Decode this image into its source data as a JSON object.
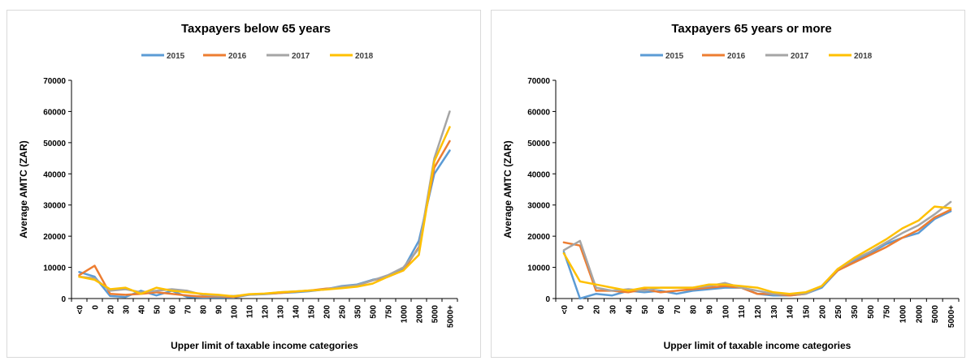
{
  "colors": {
    "2015": "#5b9bd5",
    "2016": "#ed7d31",
    "2017": "#a5a5a5",
    "2018": "#ffc000"
  },
  "chart_data": [
    {
      "type": "line",
      "title": "Taxpayers below 65 years",
      "xlabel": "Upper limit of taxable income categories",
      "ylabel": "Average AMTC (ZAR)",
      "ylim": [
        0,
        70000
      ],
      "yticks": [
        "0",
        "10000",
        "20000",
        "30000",
        "40000",
        "50000",
        "60000",
        "70000"
      ],
      "legend_position": "top",
      "grid": false,
      "categories": [
        "<0",
        "0",
        "20",
        "30",
        "40",
        "50",
        "60",
        "70",
        "80",
        "90",
        "100",
        "110",
        "120",
        "130",
        "140",
        "150",
        "200",
        "250",
        "350",
        "500",
        "750",
        "1000",
        "2000",
        "5000",
        "5000+"
      ],
      "series": [
        {
          "name": "2015",
          "values": [
            8500,
            7000,
            800,
            500,
            2500,
            1000,
            2500,
            500,
            300,
            400,
            300,
            1200,
            1400,
            1800,
            2000,
            2400,
            3000,
            4000,
            4500,
            6000,
            7000,
            9500,
            18500,
            40000,
            47500
          ]
        },
        {
          "name": "2016",
          "values": [
            7500,
            10500,
            1500,
            1200,
            1500,
            2000,
            1500,
            1000,
            600,
            700,
            500,
            1300,
            1500,
            1800,
            2200,
            2600,
            3200,
            3500,
            4200,
            5800,
            7000,
            9000,
            16500,
            42000,
            50500
          ]
        },
        {
          "name": "2017",
          "values": [
            7000,
            6500,
            2500,
            3000,
            2000,
            2500,
            3000,
            2500,
            1200,
            900,
            800,
            1200,
            1500,
            2000,
            2300,
            2500,
            3000,
            3800,
            4300,
            5800,
            7500,
            10000,
            16000,
            45000,
            60000
          ]
        },
        {
          "name": "2018",
          "values": [
            7000,
            6000,
            3000,
            3500,
            1500,
            3500,
            2500,
            2000,
            1500,
            1200,
            700,
            1400,
            1600,
            2000,
            2300,
            2600,
            2900,
            3300,
            3800,
            4800,
            7000,
            9000,
            14000,
            44000,
            55000
          ]
        }
      ]
    },
    {
      "type": "line",
      "title": "Taxpayers 65 years or more",
      "xlabel": "Upper limit of taxable income categories",
      "ylabel": "Average AMTC (ZAR)",
      "ylim": [
        0,
        70000
      ],
      "yticks": [
        "0",
        "10000",
        "20000",
        "30000",
        "40000",
        "50000",
        "60000",
        "70000"
      ],
      "legend_position": "top",
      "grid": false,
      "categories": [
        "<0",
        "0",
        "20",
        "30",
        "40",
        "50",
        "60",
        "70",
        "80",
        "90",
        "100",
        "110",
        "120",
        "130",
        "140",
        "150",
        "200",
        "250",
        "350",
        "500",
        "750",
        "1000",
        "2000",
        "5000",
        "5000+"
      ],
      "series": [
        {
          "name": "2015",
          "values": [
            15000,
            0,
            1500,
            1000,
            2500,
            2000,
            2500,
            1500,
            2500,
            3000,
            3500,
            3500,
            1500,
            1000,
            1000,
            1500,
            3500,
            9000,
            12000,
            14500,
            17500,
            19500,
            21000,
            25500,
            28000
          ]
        },
        {
          "name": "2016",
          "values": [
            18000,
            17000,
            2500,
            2500,
            2000,
            3000,
            2000,
            2500,
            3000,
            3500,
            4000,
            3500,
            1500,
            1500,
            1000,
            1500,
            4000,
            9000,
            11500,
            14000,
            16500,
            19500,
            22000,
            26000,
            28500
          ]
        },
        {
          "name": "2017",
          "values": [
            15500,
            18500,
            3500,
            2500,
            3000,
            2500,
            3500,
            3500,
            3500,
            4000,
            5000,
            3500,
            2500,
            1500,
            1500,
            1500,
            4000,
            9500,
            12500,
            15000,
            18000,
            21000,
            23500,
            27000,
            31000
          ]
        },
        {
          "name": "2018",
          "values": [
            14500,
            5500,
            4500,
            3500,
            2500,
            3500,
            3500,
            3500,
            3500,
            4500,
            4500,
            4000,
            3500,
            2000,
            1500,
            2000,
            4000,
            9500,
            13000,
            16000,
            19000,
            22500,
            25000,
            29500,
            29000
          ]
        }
      ]
    }
  ]
}
